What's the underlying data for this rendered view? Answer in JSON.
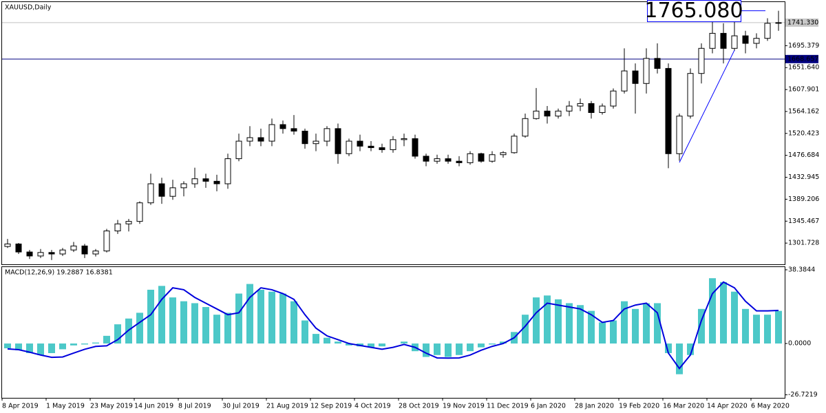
{
  "chart_data": [
    {
      "type": "candlestick",
      "title": "XAUUSD,Daily",
      "open": [
        1295,
        1300,
        1284,
        1276,
        1283,
        1280,
        1288,
        1296,
        1280,
        1286,
        1326,
        1340,
        1345,
        1382,
        1420,
        1395,
        1412,
        1420,
        1430,
        1425,
        1420,
        1470,
        1505,
        1512,
        1505,
        1538,
        1530,
        1525,
        1500,
        1505,
        1530,
        1480,
        1505,
        1495,
        1492,
        1488,
        1508,
        1510,
        1475,
        1465,
        1470,
        1465,
        1462,
        1480,
        1465,
        1478,
        1482,
        1515,
        1550,
        1565,
        1555,
        1565,
        1575,
        1580,
        1562,
        1575,
        1605,
        1645,
        1620,
        1670,
        1650,
        1480,
        1555,
        1640,
        1690,
        1720,
        1690,
        1715,
        1700,
        1710,
        1740
      ],
      "high": [
        1310,
        1302,
        1288,
        1290,
        1288,
        1292,
        1304,
        1300,
        1290,
        1330,
        1348,
        1350,
        1385,
        1440,
        1432,
        1428,
        1425,
        1452,
        1440,
        1438,
        1480,
        1520,
        1535,
        1530,
        1550,
        1546,
        1557,
        1530,
        1520,
        1535,
        1540,
        1510,
        1518,
        1505,
        1500,
        1515,
        1520,
        1518,
        1480,
        1478,
        1478,
        1475,
        1485,
        1482,
        1485,
        1485,
        1520,
        1560,
        1611,
        1575,
        1570,
        1585,
        1590,
        1585,
        1580,
        1610,
        1690,
        1660,
        1690,
        1700,
        1660,
        1560,
        1650,
        1700,
        1748,
        1740,
        1747,
        1725,
        1720,
        1750,
        1765
      ],
      "low": [
        1292,
        1280,
        1270,
        1272,
        1268,
        1276,
        1284,
        1272,
        1275,
        1283,
        1320,
        1325,
        1340,
        1378,
        1380,
        1388,
        1395,
        1412,
        1412,
        1405,
        1410,
        1465,
        1495,
        1495,
        1495,
        1520,
        1518,
        1490,
        1485,
        1495,
        1460,
        1475,
        1485,
        1485,
        1482,
        1482,
        1495,
        1470,
        1455,
        1460,
        1460,
        1455,
        1458,
        1462,
        1462,
        1472,
        1480,
        1512,
        1548,
        1540,
        1550,
        1555,
        1565,
        1550,
        1558,
        1570,
        1600,
        1560,
        1600,
        1640,
        1451,
        1466,
        1550,
        1620,
        1680,
        1660,
        1685,
        1680,
        1690,
        1705,
        1725
      ],
      "close": [
        1300,
        1284,
        1276,
        1283,
        1280,
        1288,
        1296,
        1280,
        1286,
        1326,
        1340,
        1345,
        1382,
        1420,
        1395,
        1412,
        1420,
        1430,
        1425,
        1420,
        1470,
        1505,
        1512,
        1505,
        1538,
        1530,
        1525,
        1500,
        1505,
        1530,
        1480,
        1505,
        1495,
        1492,
        1488,
        1508,
        1510,
        1475,
        1465,
        1470,
        1465,
        1462,
        1480,
        1465,
        1478,
        1482,
        1515,
        1550,
        1565,
        1555,
        1565,
        1575,
        1580,
        1562,
        1575,
        1605,
        1645,
        1620,
        1670,
        1650,
        1480,
        1555,
        1640,
        1690,
        1720,
        1690,
        1715,
        1700,
        1710,
        1740,
        1741.33
      ],
      "ylim": [
        1259.4,
        1783.7
      ],
      "yticks": [
        1695.379,
        {
          "value": 1651.64,
          "label": "1651.640"
        },
        1607.901,
        1564.162,
        1520.423,
        1476.684,
        1432.945,
        1389.206,
        1345.467,
        1301.728
      ],
      "last_price": {
        "value": 1741.33,
        "label": "1741.330"
      },
      "level": {
        "value": 1668.657,
        "color": "#000080"
      },
      "price_label": {
        "value": 1765.08,
        "label": "1765.080",
        "color": "#0000ff"
      },
      "trendline": {
        "x": [
          61,
          66
        ],
        "y": [
          1462.5,
          1686.3
        ],
        "color": "#0000ff"
      }
    },
    {
      "type": "macd",
      "label": "MACD(12,26,9) 19.2887 16.8381",
      "categories": [
        "8 Apr 2019",
        null,
        null,
        null,
        "1 May 2019",
        null,
        null,
        null,
        "23 May 2019",
        null,
        null,
        null,
        "14 Jun 2019",
        null,
        null,
        null,
        "8 Jul 2019",
        null,
        null,
        null,
        "30 Jul 2019",
        null,
        null,
        null,
        "21 Aug 2019",
        null,
        null,
        null,
        "12 Sep 2019",
        null,
        null,
        null,
        "4 Oct 2019",
        null,
        null,
        null,
        "28 Oct 2019",
        null,
        null,
        null,
        "19 Nov 2019",
        null,
        null,
        null,
        "11 Dec 2019",
        null,
        null,
        null,
        "6 Jan 2020",
        null,
        null,
        null,
        "28 Jan 2020",
        null,
        null,
        null,
        "19 Feb 2020",
        null,
        null,
        null,
        "16 Mar 2020",
        null,
        null,
        null,
        "14 Apr 2020",
        null,
        null,
        null,
        "6 May 2020",
        null,
        null
      ],
      "series": [
        {
          "kind": "histogram",
          "color": "#4cc8c8",
          "values": [
            -2.5,
            -3.5,
            -5,
            -6,
            -5,
            -3,
            -1,
            -0.5,
            0.5,
            4,
            10,
            13,
            16,
            28,
            30,
            24,
            22,
            21,
            19,
            15,
            16,
            26,
            31,
            28,
            27,
            26,
            22,
            12,
            5,
            3,
            1,
            -1,
            -1.5,
            -2,
            -1.5,
            0,
            1,
            -4,
            -7,
            -6,
            -7,
            -6,
            -4,
            -2,
            -0.5,
            1,
            6,
            15,
            24,
            25,
            23,
            21,
            20,
            17,
            11,
            12,
            22,
            18,
            21,
            21,
            -5,
            -16,
            -6,
            18,
            34,
            32,
            27,
            18,
            15,
            15,
            17
          ]
        },
        {
          "kind": "line",
          "color": "#0000dd",
          "values": [
            -2.8,
            -3.2,
            -4.5,
            -6,
            -7.2,
            -7,
            -5,
            -3,
            -1.5,
            -1.2,
            2,
            7,
            11,
            15,
            23,
            29,
            28,
            24,
            21,
            18,
            15,
            16,
            24,
            29,
            28,
            26,
            23,
            15,
            8,
            4,
            2,
            0,
            -1,
            -2,
            -3,
            -2,
            -0.5,
            -2,
            -5,
            -7.5,
            -7.6,
            -7.5,
            -6,
            -3.5,
            -1.5,
            0,
            3,
            9,
            16,
            21,
            20,
            19,
            18,
            15,
            11,
            12,
            18,
            20,
            21,
            16,
            -5,
            -13,
            -6,
            12,
            26,
            32,
            29,
            22,
            17,
            17,
            17.2
          ]
        }
      ],
      "ylim": [
        -28.3,
        39.8
      ],
      "yticks": [
        38.3844,
        {
          "value": 0,
          "label": "0.0000"
        },
        -26.7219
      ]
    }
  ]
}
